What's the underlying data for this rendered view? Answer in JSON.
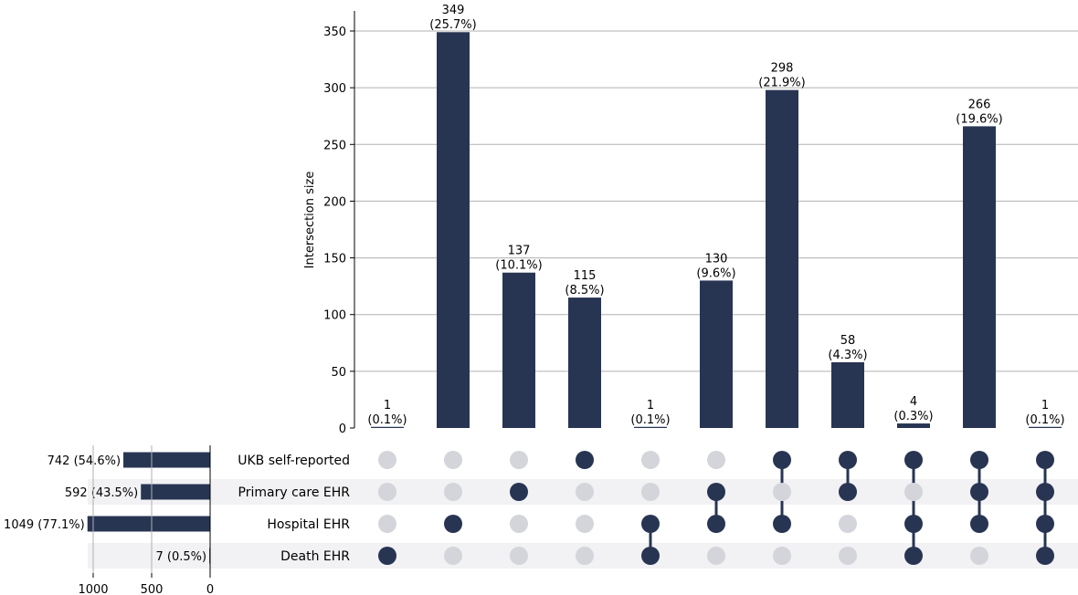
{
  "chart_data": {
    "type": "upset",
    "ylabel": "Intersection size",
    "ylim": [
      0,
      365
    ],
    "yticks": [
      0,
      50,
      100,
      150,
      200,
      250,
      300,
      350
    ],
    "grid": true,
    "colors": {
      "bar": "#283552",
      "dot_active": "#283552",
      "dot_inactive": "#d3d5da",
      "stripe": "#f2f2f5",
      "grid": "#b0b0b0"
    },
    "sets": [
      {
        "name": "UKB self-reported",
        "size": 742,
        "label": "742 (54.6%)"
      },
      {
        "name": "Primary care EHR",
        "size": 592,
        "label": "592 (43.5%)"
      },
      {
        "name": "Hospital EHR",
        "size": 1049,
        "label": "1049 (77.1%)"
      },
      {
        "name": "Death EHR",
        "size": 7,
        "label": "7 (0.5%)"
      }
    ],
    "set_size_axis": {
      "ticks": [
        1000,
        500,
        0
      ],
      "max": 1050
    },
    "intersections": [
      {
        "members": [
          3
        ],
        "value": 1,
        "count_label": "1",
        "pct_label": "(0.1%)"
      },
      {
        "members": [
          2
        ],
        "value": 349,
        "count_label": "349",
        "pct_label": "(25.7%)"
      },
      {
        "members": [
          1
        ],
        "value": 137,
        "count_label": "137",
        "pct_label": "(10.1%)"
      },
      {
        "members": [
          0
        ],
        "value": 115,
        "count_label": "115",
        "pct_label": "(8.5%)"
      },
      {
        "members": [
          2,
          3
        ],
        "value": 1,
        "count_label": "1",
        "pct_label": "(0.1%)"
      },
      {
        "members": [
          1,
          2
        ],
        "value": 130,
        "count_label": "130",
        "pct_label": "(9.6%)"
      },
      {
        "members": [
          0,
          2
        ],
        "value": 298,
        "count_label": "298",
        "pct_label": "(21.9%)"
      },
      {
        "members": [
          0,
          1
        ],
        "value": 58,
        "count_label": "58",
        "pct_label": "(4.3%)"
      },
      {
        "members": [
          0,
          2,
          3
        ],
        "value": 4,
        "count_label": "4",
        "pct_label": "(0.3%)"
      },
      {
        "members": [
          0,
          1,
          2
        ],
        "value": 266,
        "count_label": "266",
        "pct_label": "(19.6%)"
      },
      {
        "members": [
          0,
          1,
          2,
          3
        ],
        "value": 1,
        "count_label": "1",
        "pct_label": "(0.1%)"
      }
    ]
  }
}
